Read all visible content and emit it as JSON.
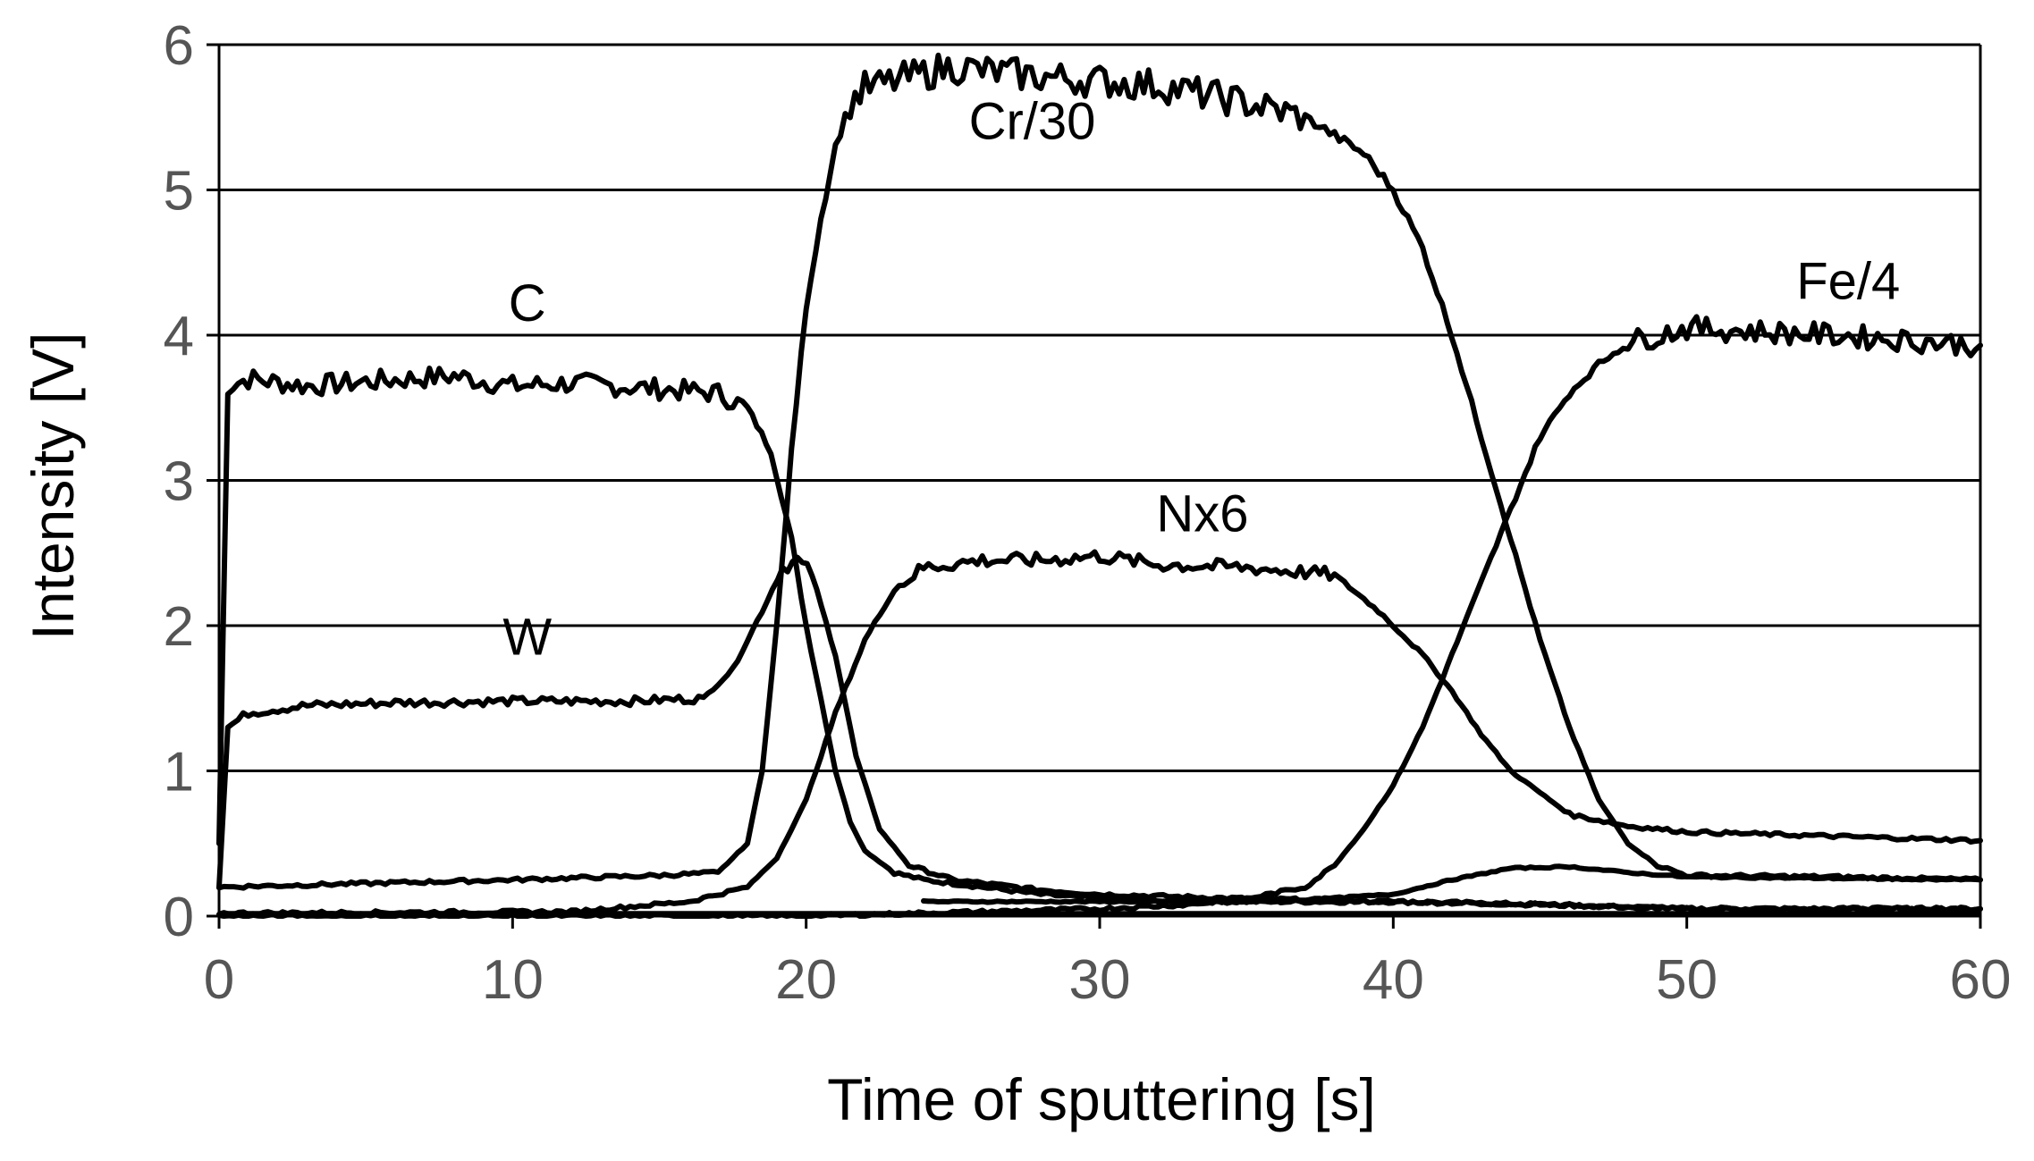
{
  "chart_data": {
    "type": "line",
    "title": "",
    "xlabel": "Time of sputtering [s]",
    "ylabel": "Intensity [V]",
    "xlim": [
      0,
      60
    ],
    "ylim": [
      0,
      6
    ],
    "xticks": [
      "0",
      "10",
      "20",
      "30",
      "40",
      "50",
      "60"
    ],
    "yticks": [
      "0",
      "1",
      "2",
      "3",
      "4",
      "5",
      "6"
    ],
    "grid": "horizontal",
    "legend": "none",
    "line_color": "#000000",
    "series": [
      {
        "name": "C",
        "x": [
          0,
          0.3,
          1,
          3,
          5,
          8,
          10,
          12,
          15,
          17,
          18,
          18.8,
          19.5,
          20,
          20.5,
          21,
          21.5,
          22,
          23,
          24,
          26,
          28,
          30,
          33,
          36,
          40,
          45,
          50,
          55,
          60
        ],
        "y": [
          0.5,
          3.65,
          3.7,
          3.65,
          3.68,
          3.72,
          3.65,
          3.67,
          3.63,
          3.6,
          3.5,
          3.2,
          2.6,
          2.0,
          1.5,
          1.0,
          0.65,
          0.45,
          0.3,
          0.25,
          0.2,
          0.15,
          0.12,
          0.1,
          0.1,
          0.1,
          0.08,
          0.05,
          0.05,
          0.05
        ]
      },
      {
        "name": "W",
        "x": [
          0,
          0.3,
          1,
          3,
          6,
          10,
          14,
          16.5,
          17.5,
          18.5,
          19.2,
          19.7,
          20.2,
          21,
          21.7,
          22.5,
          23.5,
          25,
          28,
          30,
          35,
          40,
          45,
          50,
          55,
          60
        ],
        "y": [
          0.2,
          1.3,
          1.4,
          1.45,
          1.47,
          1.48,
          1.48,
          1.5,
          1.7,
          2.1,
          2.4,
          2.45,
          2.35,
          1.8,
          1.1,
          0.6,
          0.35,
          0.25,
          0.18,
          0.15,
          0.12,
          0.1,
          0.08,
          0.05,
          0.05,
          0.05
        ]
      },
      {
        "name": "Cr/30",
        "x": [
          0,
          10,
          15,
          17,
          18,
          18.5,
          19,
          19.5,
          20,
          20.5,
          21,
          21.5,
          22,
          22.5,
          23,
          25,
          26,
          28,
          30,
          32,
          35,
          37,
          39,
          40,
          41,
          42,
          43,
          44,
          45,
          46,
          47,
          48,
          49,
          50,
          55,
          60
        ],
        "y": [
          0.2,
          0.25,
          0.28,
          0.3,
          0.5,
          1.0,
          2.0,
          3.2,
          4.2,
          4.8,
          5.3,
          5.6,
          5.7,
          5.72,
          5.75,
          5.85,
          5.82,
          5.78,
          5.75,
          5.72,
          5.6,
          5.5,
          5.25,
          5.0,
          4.6,
          4.0,
          3.3,
          2.6,
          1.9,
          1.3,
          0.8,
          0.5,
          0.35,
          0.28,
          0.27,
          0.25
        ]
      },
      {
        "name": "Nx6",
        "x": [
          0,
          12,
          16,
          18,
          19,
          20,
          21,
          22,
          23,
          24,
          26,
          28,
          30,
          32,
          35,
          38,
          39.5,
          41,
          42,
          43,
          44,
          45,
          46,
          48,
          50,
          55,
          60
        ],
        "y": [
          0.02,
          0.03,
          0.1,
          0.2,
          0.4,
          0.8,
          1.4,
          1.9,
          2.25,
          2.4,
          2.45,
          2.45,
          2.48,
          2.42,
          2.4,
          2.35,
          2.1,
          1.8,
          1.55,
          1.25,
          1.0,
          0.85,
          0.7,
          0.62,
          0.58,
          0.55,
          0.52
        ]
      },
      {
        "name": "Fe/4",
        "x": [
          0,
          20,
          30,
          33,
          35,
          37,
          38,
          39,
          40,
          41,
          42,
          43,
          44,
          45,
          46,
          47,
          48,
          50,
          55,
          60
        ],
        "y": [
          0.0,
          0.0,
          0.05,
          0.08,
          0.12,
          0.2,
          0.35,
          0.6,
          0.9,
          1.3,
          1.8,
          2.3,
          2.8,
          3.3,
          3.6,
          3.8,
          3.95,
          4.05,
          4.0,
          3.93
        ]
      }
    ],
    "extra_line": {
      "x": [
        24,
        28,
        32,
        36,
        40,
        42,
        44,
        46,
        48,
        50,
        55,
        60
      ],
      "y": [
        0.1,
        0.1,
        0.1,
        0.1,
        0.15,
        0.25,
        0.33,
        0.34,
        0.3,
        0.27,
        0.26,
        0.25
      ]
    },
    "annotations": [
      {
        "series": "C",
        "text": "C",
        "x": 10.5,
        "y": 4.1
      },
      {
        "series": "W",
        "text": "W",
        "x": 10.5,
        "y": 1.8
      },
      {
        "series": "Cr/30",
        "text": "Cr/30",
        "x": 27.7,
        "y": 5.35
      },
      {
        "series": "Nx6",
        "text": "Nx6",
        "x": 33.5,
        "y": 2.65
      },
      {
        "series": "Fe/4",
        "text": "Fe/4",
        "x": 55.5,
        "y": 4.25
      }
    ]
  }
}
